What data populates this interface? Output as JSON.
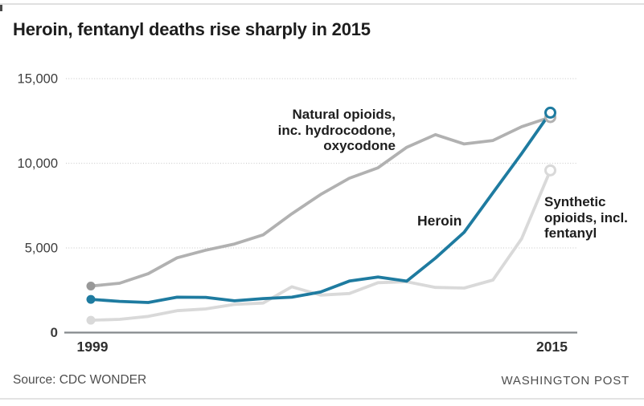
{
  "title": "Heroin, fentanyl deaths rise sharply in 2015",
  "footer": {
    "source": "Source: CDC WONDER",
    "attribution": "WASHINGTON POST"
  },
  "annotations": {
    "natural": "Natural opioids,\ninc. hydrocodone,\noxycodone",
    "heroin": "Heroin",
    "synthetic": "Synthetic\nopioids, incl.\nfentanyl"
  },
  "colors": {
    "heroin": "#1e7ba0",
    "natural": "#b1b1b1",
    "natural_marker": "#989898",
    "synthetic": "#d9d9d9",
    "grid": "#d0d0d0",
    "axis": "#85898c",
    "tick_text": "#3d3d3d",
    "xtick_text": "#2e2e2e",
    "title_text": "#1d1d1d",
    "footer_text": "#4e4e4e",
    "background": "#ffffff"
  },
  "chart_data": {
    "type": "line",
    "title": "Heroin, fentanyl deaths rise sharply in 2015",
    "xlabel": "",
    "ylabel": "",
    "x": [
      1999,
      2000,
      2001,
      2002,
      2003,
      2004,
      2005,
      2006,
      2007,
      2008,
      2009,
      2010,
      2011,
      2012,
      2013,
      2014,
      2015
    ],
    "series": [
      {
        "key": "natural",
        "name": "Natural opioids, inc. hydrocodone, oxycodone",
        "values": [
          2749,
          2917,
          3479,
          4416,
          4867,
          5231,
          5774,
          7017,
          8158,
          9119,
          9735,
          10943,
          11693,
          11140,
          11346,
          12159,
          12727
        ]
      },
      {
        "key": "heroin",
        "name": "Heroin",
        "values": [
          1960,
          1842,
          1779,
          2089,
          2080,
          1878,
          2009,
          2088,
          2399,
          3041,
          3278,
          3036,
          4397,
          5925,
          8257,
          10574,
          12989
        ]
      },
      {
        "key": "synthetic",
        "name": "Synthetic opioids, incl. fentanyl",
        "values": [
          730,
          782,
          957,
          1295,
          1400,
          1664,
          1742,
          2707,
          2213,
          2306,
          2946,
          3007,
          2666,
          2628,
          3105,
          5544,
          9580
        ]
      }
    ],
    "ylim": [
      0,
      15000
    ],
    "xlim": [
      1999,
      2015
    ],
    "yticks": [
      {
        "value": 0,
        "label": "0"
      },
      {
        "value": 5000,
        "label": "5,000"
      },
      {
        "value": 10000,
        "label": "10,000"
      },
      {
        "value": 15000,
        "label": "15,000"
      }
    ],
    "xticks": [
      {
        "value": 1999,
        "label": "1999"
      },
      {
        "value": 2015,
        "label": "2015"
      }
    ],
    "grid": true,
    "legend_position": "inline-annotations",
    "markers": {
      "start": "filled-dot",
      "end": "open-ring"
    }
  }
}
